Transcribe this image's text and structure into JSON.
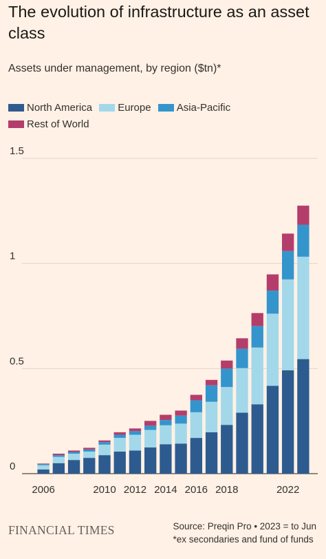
{
  "title": "The evolution of infrastructure as an asset class",
  "subtitle": "Assets under management, by region ($tn)*",
  "source_line1": "Source: Preqin Pro • 2023 = to Jun",
  "source_line2": "*ex secondaries and fund of funds",
  "brand": "FINANCIAL TIMES",
  "legend": [
    {
      "name": "North America",
      "color": "#2E5B8F"
    },
    {
      "name": "Europe",
      "color": "#A2D8EA"
    },
    {
      "name": "Asia-Pacific",
      "color": "#3495CD"
    },
    {
      "name": "Rest of World",
      "color": "#B43E6B"
    }
  ],
  "chart_data": {
    "type": "bar",
    "stacked": true,
    "categories": [
      "2006",
      "2007",
      "2008",
      "2009",
      "2010",
      "2011",
      "2012",
      "2013",
      "2014",
      "2015",
      "2016",
      "2017",
      "2018",
      "2019",
      "2020",
      "2021",
      "2022",
      "2023"
    ],
    "x_tick_labels": [
      "2006",
      "",
      "",
      "",
      "2010",
      "",
      "2012",
      "",
      "2014",
      "",
      "2016",
      "",
      "2018",
      "",
      "",
      "",
      "2022",
      ""
    ],
    "ylim": [
      0,
      1.5
    ],
    "y_ticks": [
      0,
      0.5,
      1,
      1.5
    ],
    "y_tick_labels": [
      "0",
      "0.5",
      "1",
      "1.5"
    ],
    "grid": true,
    "legend_position": "top-left",
    "series": [
      {
        "name": "North America",
        "color": "#2E5B8F",
        "values": [
          0.02,
          0.05,
          0.065,
          0.075,
          0.088,
          0.105,
          0.11,
          0.125,
          0.14,
          0.143,
          0.17,
          0.197,
          0.232,
          0.29,
          0.33,
          0.418,
          0.492,
          0.545
        ]
      },
      {
        "name": "Europe",
        "color": "#A2D8EA",
        "values": [
          0.02,
          0.03,
          0.03,
          0.03,
          0.05,
          0.065,
          0.075,
          0.083,
          0.09,
          0.095,
          0.122,
          0.145,
          0.18,
          0.212,
          0.27,
          0.343,
          0.432,
          0.487
        ]
      },
      {
        "name": "Asia-Pacific",
        "color": "#3495CD",
        "values": [
          0.005,
          0.008,
          0.008,
          0.01,
          0.012,
          0.015,
          0.017,
          0.02,
          0.025,
          0.038,
          0.057,
          0.078,
          0.088,
          0.092,
          0.102,
          0.11,
          0.135,
          0.152
        ]
      },
      {
        "name": "Rest of World",
        "color": "#B43E6B",
        "values": [
          0.003,
          0.007,
          0.007,
          0.008,
          0.008,
          0.012,
          0.013,
          0.023,
          0.025,
          0.024,
          0.026,
          0.026,
          0.038,
          0.05,
          0.062,
          0.077,
          0.083,
          0.091
        ]
      }
    ]
  }
}
